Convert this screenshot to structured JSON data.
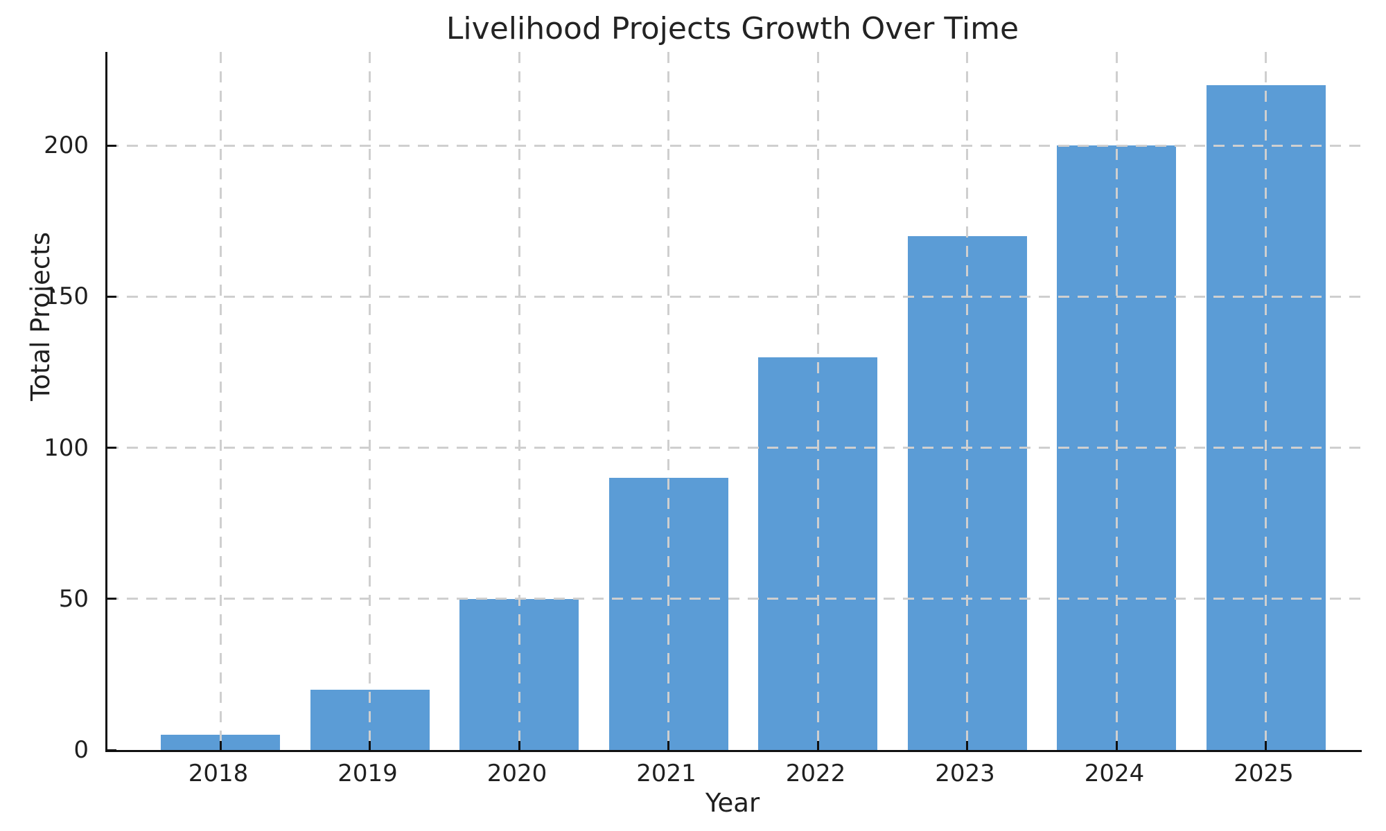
{
  "chart_data": {
    "type": "bar",
    "title": "Livelihood Projects Growth Over Time",
    "xlabel": "Year",
    "ylabel": "Total Projects",
    "categories": [
      "2018",
      "2019",
      "2020",
      "2021",
      "2022",
      "2023",
      "2024",
      "2025"
    ],
    "values": [
      5,
      20,
      50,
      90,
      130,
      170,
      200,
      220
    ],
    "yticks": [
      0,
      50,
      100,
      150,
      200
    ],
    "ylim": [
      0,
      231
    ],
    "grid": true,
    "grid_style": "dashed",
    "grid_color": "#cfcfcf",
    "bar_color": "#5b9cd6",
    "background_color": "#ffffff",
    "text_color": "#1f1f1f",
    "legend": "none",
    "spines": [
      "left",
      "bottom"
    ]
  }
}
